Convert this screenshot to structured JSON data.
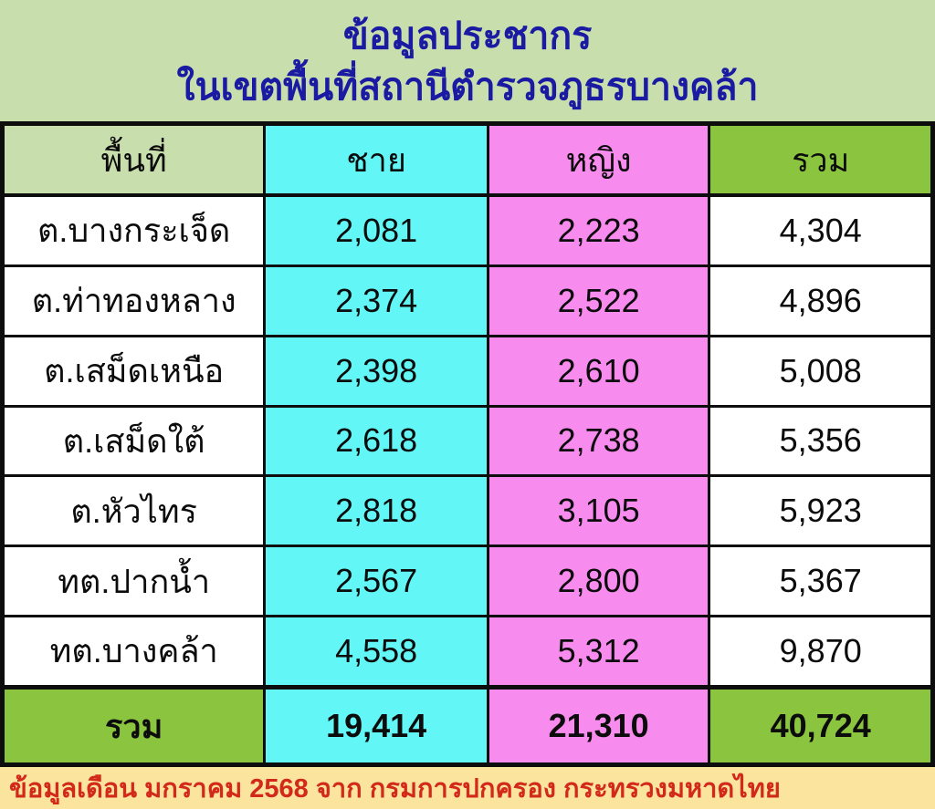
{
  "title": {
    "line1": "ข้อมูลประชากร",
    "line2": "ในเขตพื้นที่สถานีตำรวจภูธรบางคล้า"
  },
  "table": {
    "columns": [
      {
        "key": "area",
        "label": "พื้นที่"
      },
      {
        "key": "male",
        "label": "ชาย"
      },
      {
        "key": "female",
        "label": "หญิง"
      },
      {
        "key": "total",
        "label": "รวม"
      }
    ],
    "rows": [
      {
        "area": "ต.บางกระเจ็ด",
        "male": "2,081",
        "female": "2,223",
        "total": "4,304"
      },
      {
        "area": "ต.ท่าทองหลาง",
        "male": "2,374",
        "female": "2,522",
        "total": "4,896"
      },
      {
        "area": "ต.เสม็ดเหนือ",
        "male": "2,398",
        "female": "2,610",
        "total": "5,008"
      },
      {
        "area": "ต.เสม็ดใต้",
        "male": "2,618",
        "female": "2,738",
        "total": "5,356"
      },
      {
        "area": "ต.หัวไทร",
        "male": "2,818",
        "female": "3,105",
        "total": "5,923"
      },
      {
        "area": "ทต.ปากน้ำ",
        "male": "2,567",
        "female": "2,800",
        "total": "5,367"
      },
      {
        "area": "ทต.บางคล้า",
        "male": "4,558",
        "female": "5,312",
        "total": "9,870"
      }
    ],
    "total_row": {
      "area": "รวม",
      "male": "19,414",
      "female": "21,310",
      "total": "40,724"
    }
  },
  "footer": {
    "note": "ข้อมูลเดือน มกราคม 2568 จาก กรมการปกครอง กระทรวงมหาดไทย"
  },
  "colors": {
    "light-green": "#c9dead",
    "cyan": "#63f6f6",
    "pink": "#f78cee",
    "green": "#8bc53f",
    "title-blue": "#1a1aa3",
    "footer-bg": "#fbe49d",
    "footer-red": "#d2291b",
    "line": "#0d0d0d"
  },
  "chart_data": {
    "type": "table",
    "title": "ข้อมูลประชากร ในเขตพื้นที่สถานีตำรวจภูธรบางคล้า",
    "columns": [
      "พื้นที่",
      "ชาย",
      "หญิง",
      "รวม"
    ],
    "rows": [
      [
        "ต.บางกระเจ็ด",
        2081,
        2223,
        4304
      ],
      [
        "ต.ท่าทองหลาง",
        2374,
        2522,
        4896
      ],
      [
        "ต.เสม็ดเหนือ",
        2398,
        2610,
        5008
      ],
      [
        "ต.เสม็ดใต้",
        2618,
        2738,
        5356
      ],
      [
        "ต.หัวไทร",
        2818,
        3105,
        5923
      ],
      [
        "ทต.ปากน้ำ",
        2567,
        2800,
        5367
      ],
      [
        "ทต.บางคล้า",
        4558,
        5312,
        9870
      ]
    ],
    "totals_row": [
      "รวม",
      19414,
      21310,
      40724
    ],
    "note": "ข้อมูลเดือน มกราคม 2568 จาก กรมการปกครอง กระทรวงมหาดไทย"
  }
}
